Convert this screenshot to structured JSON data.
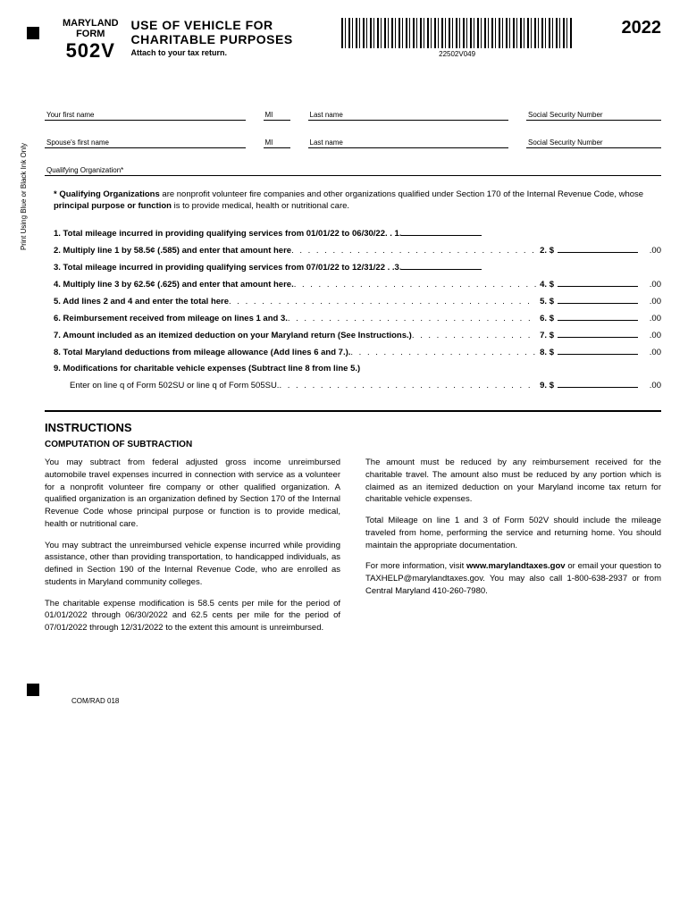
{
  "vtext": "Print Using Blue or\nBlack Ink Only",
  "header": {
    "state": "MARYLAND",
    "form_word": "FORM",
    "form_num": "502V",
    "title_l1": "USE OF VEHICLE FOR",
    "title_l2": "CHARITABLE PURPOSES",
    "attach": "Attach to your tax return.",
    "barcode_num": "22502V049",
    "year": "2022"
  },
  "fields": {
    "first": "Your first name",
    "mi": "MI",
    "last": "Last name",
    "ssn": "Social Security Number",
    "sfirst": "Spouse's first name",
    "qorg": "Qualifying Organization*"
  },
  "note_lead": "* Qualifying Organizations",
  "note_rest": " are nonprofit volunteer fire companies and other organizations qualified under Section 170 of the Internal Revenue Code, whose ",
  "note_bold": "principal purpose or function",
  "note_end": " is to provide medical, health or nutritional care.",
  "lines": {
    "l1": "1. Total mileage incurred in providing qualifying services from 01/01/22 to 06/30/22. . 1.",
    "l2": "2. Multiply line 1 by 58.5¢ (.585) and enter that amount here",
    "l2n": "2. $",
    "l3": "3. Total mileage incurred in providing qualifying services from 07/01/22 to 12/31/22 . .3.",
    "l4": "4. Multiply line 3 by 62.5¢ (.625) and enter that amount here.",
    "l4n": "4. $",
    "l5": "5. Add lines 2 and 4 and enter the total here",
    "l5n": "5. $",
    "l6": "6. Reimbursement received from mileage on lines 1 and 3.",
    "l6n": "6. $",
    "l7": "7. Amount included as an itemized deduction on your Maryland return (See Instructions.)",
    "l7n": "7. $",
    "l8": "8. Total Maryland deductions from mileage allowance (Add lines 6 and 7.).",
    "l8n": "8. $",
    "l9a": "9. Modifications for charitable vehicle expenses (Subtract line 8 from line 5.)",
    "l9b": "Enter on line q of Form 502SU or line q of Form 505SU.",
    "l9n": "9. $",
    "cents": ".00"
  },
  "instr": {
    "title": "INSTRUCTIONS",
    "sub": "COMPUTATION OF SUBTRACTION",
    "c1p1": "You may subtract from federal adjusted gross income unreimbursed automobile travel expenses incurred in connection with service as a volunteer for a nonprofit volunteer fire company or other qualified organization. A qualified organization is an organization defined by Section 170 of the Internal Revenue Code whose principal purpose or function is to provide medical, health or nutritional care.",
    "c1p2": "You may subtract the unreimbursed vehicle expense incurred while providing assistance, other than providing transportation, to handicapped individuals, as defined in Section 190 of the Internal Revenue Code, who are enrolled as students in Maryland community colleges.",
    "c1p3": "The charitable expense modification is 58.5 cents per mile for the period of 01/01/2022 through 06/30/2022 and 62.5 cents per mile for the period of 07/01/2022 through 12/31/2022 to the extent this amount is unreimbursed.",
    "c2p1": "The amount must be reduced by any reimbursement received for the charitable travel. The amount also must be reduced by any portion which is claimed as an itemized deduction on your Maryland income tax return for charitable vehicle expenses.",
    "c2p2": "Total Mileage on line 1 and 3 of Form 502V should include the mileage traveled from home, performing the service and returning home. You should maintain the appropriate documentation.",
    "c2p3a": "For more information, visit ",
    "c2p3b": "www.marylandtaxes.gov",
    "c2p3c": " or email your question to TAXHELP@marylandtaxes.gov. You may also call 1-800-638-2937 or from Central Maryland 410-260-7980."
  },
  "footer": "COM/RAD 018"
}
